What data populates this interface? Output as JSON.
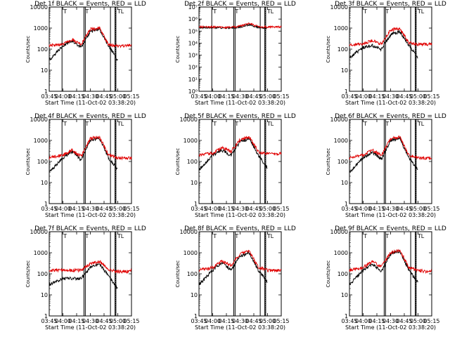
{
  "figure": {
    "x_tick_labels": [
      "03:45",
      "04:00",
      "04:15",
      "04:30",
      "04:45",
      "05:00",
      "05:15"
    ],
    "xlabel": "Start Time (11-Oct-02 03:38:20)",
    "ylabel": "Counts/sec",
    "colors": {
      "events": "#000000",
      "lld": "#e00000"
    }
  },
  "chart_data": [
    {
      "type": "line",
      "title": "Det 1f BLACK = Events, RED = LLD",
      "yscale": "log",
      "ylim": [
        1,
        10000
      ],
      "y_tick_labels": [
        "1",
        "10",
        "100",
        "1000",
        "10000"
      ],
      "annotations": [
        "T",
        "T",
        "TL"
      ],
      "x": [
        "03:45",
        "04:00",
        "04:10",
        "04:20",
        "04:30",
        "04:40",
        "04:50",
        "05:00",
        "05:10",
        "05:15"
      ],
      "series": [
        {
          "values": [
            30,
            150,
            250,
            120,
            700,
            900,
            150,
            30,
            null,
            null
          ]
        },
        {
          "values": [
            150,
            170,
            280,
            170,
            900,
            1000,
            160,
            140,
            150,
            160
          ]
        }
      ]
    },
    {
      "type": "line",
      "title": "Det 2f BLACK = Events, RED = LLD",
      "yscale": "log",
      "ylim": [
        1,
        10000000
      ],
      "y_tick_labels": [
        "10⁰",
        "10¹",
        "10²",
        "10³",
        "10⁴",
        "10⁵",
        "10⁶",
        "10⁷"
      ],
      "annotations": [
        "T",
        "T",
        "TL"
      ],
      "x": [
        "03:45",
        "04:00",
        "04:10",
        "04:20",
        "04:30",
        "04:40",
        "04:50",
        "05:00",
        "05:10",
        "05:15"
      ],
      "series": [
        {
          "values": [
            200000,
            200000,
            190000,
            190000,
            220000,
            350000,
            200000,
            180000,
            null,
            null
          ]
        },
        {
          "values": [
            220000,
            220000,
            210000,
            210000,
            260000,
            450000,
            230000,
            220000,
            220000,
            230000
          ]
        }
      ]
    },
    {
      "type": "line",
      "title": "Det 3f BLACK = Events, RED = LLD",
      "yscale": "log",
      "ylim": [
        1,
        10000
      ],
      "y_tick_labels": [
        "1",
        "10",
        "100",
        "1000",
        "10000"
      ],
      "annotations": [
        "T",
        "T",
        "TL"
      ],
      "x": [
        "03:45",
        "04:00",
        "04:10",
        "04:20",
        "04:30",
        "04:40",
        "04:50",
        "05:00",
        "05:10",
        "05:15"
      ],
      "series": [
        {
          "values": [
            40,
            120,
            150,
            100,
            500,
            700,
            150,
            40,
            null,
            null
          ]
        },
        {
          "values": [
            150,
            180,
            260,
            180,
            800,
            1000,
            200,
            170,
            170,
            180
          ]
        }
      ]
    },
    {
      "type": "line",
      "title": "Det 4f BLACK = Events, RED = LLD",
      "yscale": "log",
      "ylim": [
        1,
        10000
      ],
      "y_tick_labels": [
        "1",
        "10",
        "100",
        "1000",
        "10000"
      ],
      "annotations": [
        "T",
        "T",
        "TL"
      ],
      "x": [
        "03:45",
        "04:00",
        "04:10",
        "04:20",
        "04:30",
        "04:40",
        "04:50",
        "05:00",
        "05:10",
        "05:15"
      ],
      "series": [
        {
          "values": [
            30,
            150,
            300,
            120,
            1000,
            1300,
            150,
            40,
            null,
            null
          ]
        },
        {
          "values": [
            150,
            200,
            350,
            180,
            1200,
            1500,
            200,
            150,
            140,
            150
          ]
        }
      ]
    },
    {
      "type": "line",
      "title": "Det 5f BLACK = Events, RED = LLD",
      "yscale": "log",
      "ylim": [
        1,
        10000
      ],
      "y_tick_labels": [
        "1",
        "10",
        "100",
        "1000",
        "10000"
      ],
      "annotations": [
        "T",
        "T",
        "TL"
      ],
      "x": [
        "03:45",
        "04:00",
        "04:10",
        "04:20",
        "04:30",
        "04:40",
        "04:50",
        "05:00",
        "05:10",
        "05:15"
      ],
      "series": [
        {
          "values": [
            40,
            200,
            350,
            200,
            900,
            1200,
            200,
            50,
            null,
            null
          ]
        },
        {
          "values": [
            200,
            250,
            450,
            300,
            1100,
            1400,
            300,
            230,
            220,
            240
          ]
        }
      ]
    },
    {
      "type": "line",
      "title": "Det 6f BLACK = Events, RED = LLD",
      "yscale": "log",
      "ylim": [
        1,
        10000
      ],
      "y_tick_labels": [
        "1",
        "10",
        "100",
        "1000",
        "10000"
      ],
      "annotations": [
        "T",
        "T",
        "TL"
      ],
      "x": [
        "03:45",
        "04:00",
        "04:10",
        "04:20",
        "04:30",
        "04:40",
        "04:50",
        "05:00",
        "05:10",
        "05:15"
      ],
      "series": [
        {
          "values": [
            30,
            150,
            280,
            130,
            1000,
            1300,
            150,
            40,
            null,
            null
          ]
        },
        {
          "values": [
            150,
            200,
            350,
            200,
            1200,
            1500,
            200,
            150,
            140,
            150
          ]
        }
      ]
    },
    {
      "type": "line",
      "title": "Det 7f BLACK = Events, RED = LLD",
      "yscale": "log",
      "ylim": [
        1,
        10000
      ],
      "y_tick_labels": [
        "1",
        "10",
        "100",
        "1000",
        "10000"
      ],
      "annotations": [
        "T",
        "T",
        "TL"
      ],
      "x": [
        "03:45",
        "04:00",
        "04:10",
        "04:20",
        "04:30",
        "04:40",
        "04:50",
        "05:00",
        "05:10",
        "05:15"
      ],
      "series": [
        {
          "values": [
            30,
            60,
            60,
            60,
            200,
            300,
            80,
            20,
            null,
            null
          ]
        },
        {
          "values": [
            140,
            150,
            150,
            150,
            300,
            400,
            150,
            130,
            130,
            140
          ]
        }
      ]
    },
    {
      "type": "line",
      "title": "Det 8f BLACK = Events, RED = LLD",
      "yscale": "log",
      "ylim": [
        1,
        10000
      ],
      "y_tick_labels": [
        "1",
        "10",
        "100",
        "1000",
        "10000"
      ],
      "annotations": [
        "T",
        "T",
        "TL"
      ],
      "x": [
        "03:45",
        "04:00",
        "04:10",
        "04:20",
        "04:30",
        "04:40",
        "04:50",
        "05:00",
        "05:10",
        "05:15"
      ],
      "series": [
        {
          "values": [
            30,
            150,
            350,
            150,
            700,
            1000,
            150,
            40,
            null,
            null
          ]
        },
        {
          "values": [
            150,
            200,
            400,
            250,
            900,
            1200,
            200,
            150,
            140,
            150
          ]
        }
      ]
    },
    {
      "type": "line",
      "title": "Det 9f BLACK = Events, RED = LLD",
      "yscale": "log",
      "ylim": [
        1,
        10000
      ],
      "y_tick_labels": [
        "1",
        "10",
        "100",
        "1000",
        "10000"
      ],
      "annotations": [
        "T",
        "T",
        "TL"
      ],
      "x": [
        "03:45",
        "04:00",
        "04:10",
        "04:20",
        "04:30",
        "04:40",
        "04:50",
        "05:00",
        "05:10",
        "05:15"
      ],
      "series": [
        {
          "values": [
            30,
            150,
            300,
            130,
            900,
            1200,
            150,
            40,
            null,
            null
          ]
        },
        {
          "values": [
            150,
            200,
            400,
            220,
            1000,
            1400,
            200,
            150,
            130,
            140
          ]
        }
      ]
    }
  ]
}
